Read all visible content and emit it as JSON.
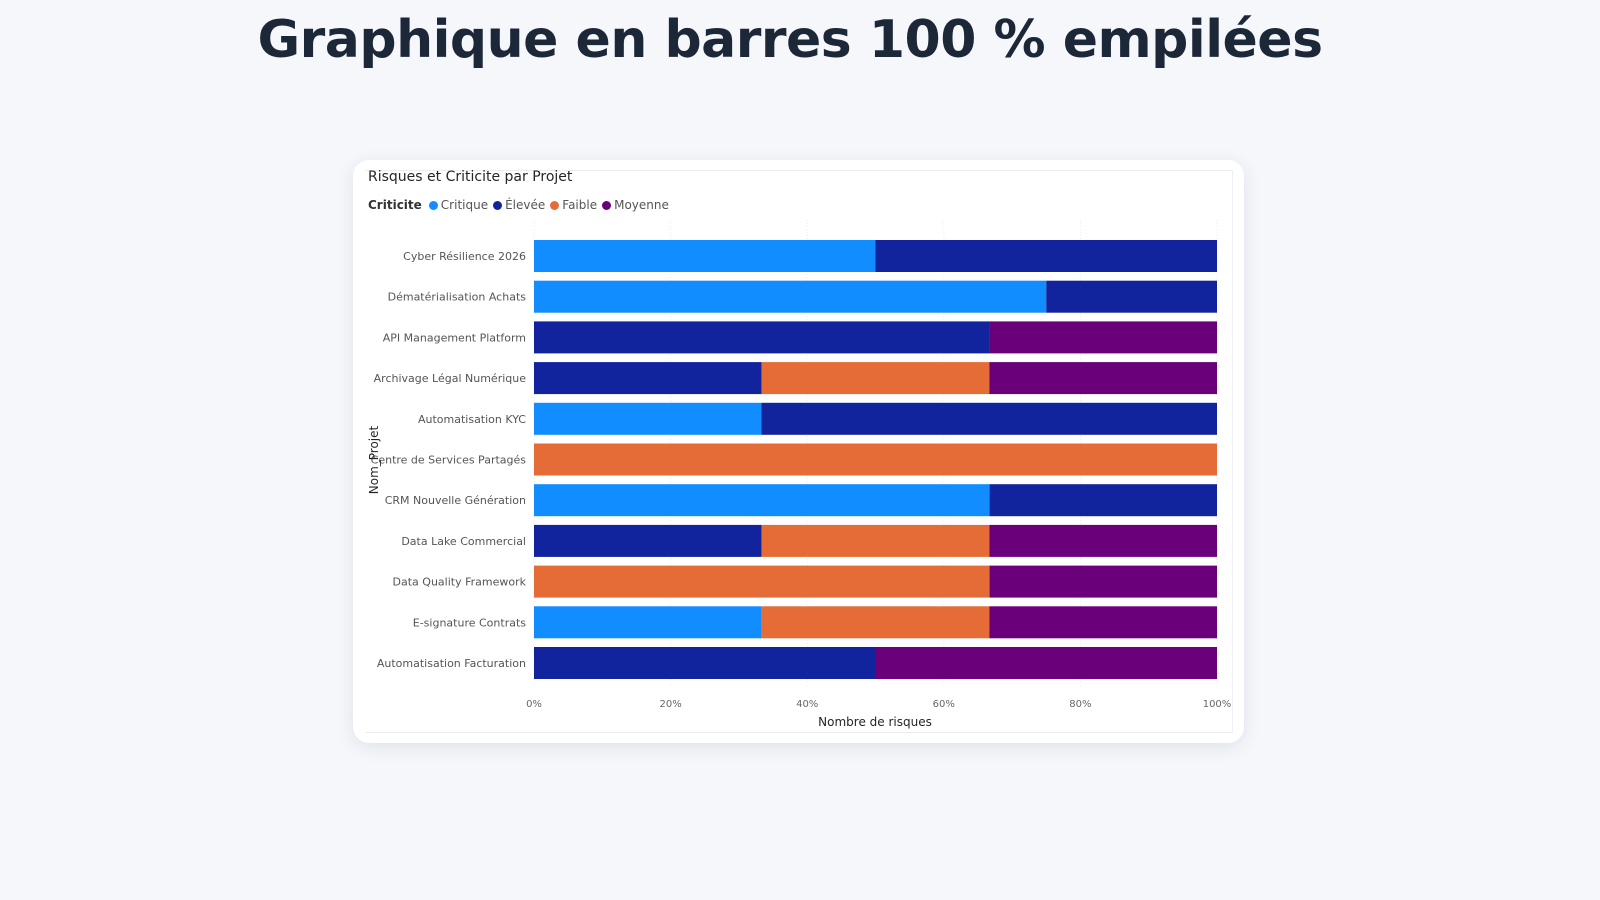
{
  "page": {
    "title": "Graphique en barres 100 % empilées"
  },
  "chart_data": {
    "type": "bar",
    "orientation": "horizontal",
    "stacking": "percent",
    "title": "Risques et Criticite par Projet",
    "legend_title": "Criticite",
    "legend_position": "top-left",
    "xlabel": "Nombre de risques",
    "ylabel": "Nom_Projet",
    "xlim": [
      0,
      100
    ],
    "xticks": [
      "0%",
      "20%",
      "40%",
      "60%",
      "80%",
      "100%"
    ],
    "grid": true,
    "categories": [
      "Cyber Résilience 2026",
      "Dématérialisation Achats",
      "API Management Platform",
      "Archivage Légal Numérique",
      "Automatisation KYC",
      "Centre de Services Partagés",
      "CRM Nouvelle Génération",
      "Data Lake Commercial",
      "Data Quality Framework",
      "E-signature Contrats",
      "Automatisation Facturation"
    ],
    "series": [
      {
        "name": "Critique",
        "color": "#118dff",
        "values": [
          50,
          75,
          0,
          0,
          33.3,
          0,
          66.7,
          0,
          0,
          33.3,
          0
        ]
      },
      {
        "name": "Élevée",
        "color": "#12239e",
        "values": [
          50,
          25,
          66.7,
          33.3,
          66.7,
          0,
          33.3,
          33.3,
          0,
          0,
          50
        ]
      },
      {
        "name": "Faible",
        "color": "#e66c37",
        "values": [
          0,
          0,
          0,
          33.3,
          0,
          100,
          0,
          33.3,
          66.7,
          33.3,
          0
        ]
      },
      {
        "name": "Moyenne",
        "color": "#6b007b",
        "values": [
          0,
          0,
          33.3,
          33.3,
          0,
          0,
          0,
          33.3,
          33.3,
          33.3,
          50
        ]
      }
    ]
  }
}
